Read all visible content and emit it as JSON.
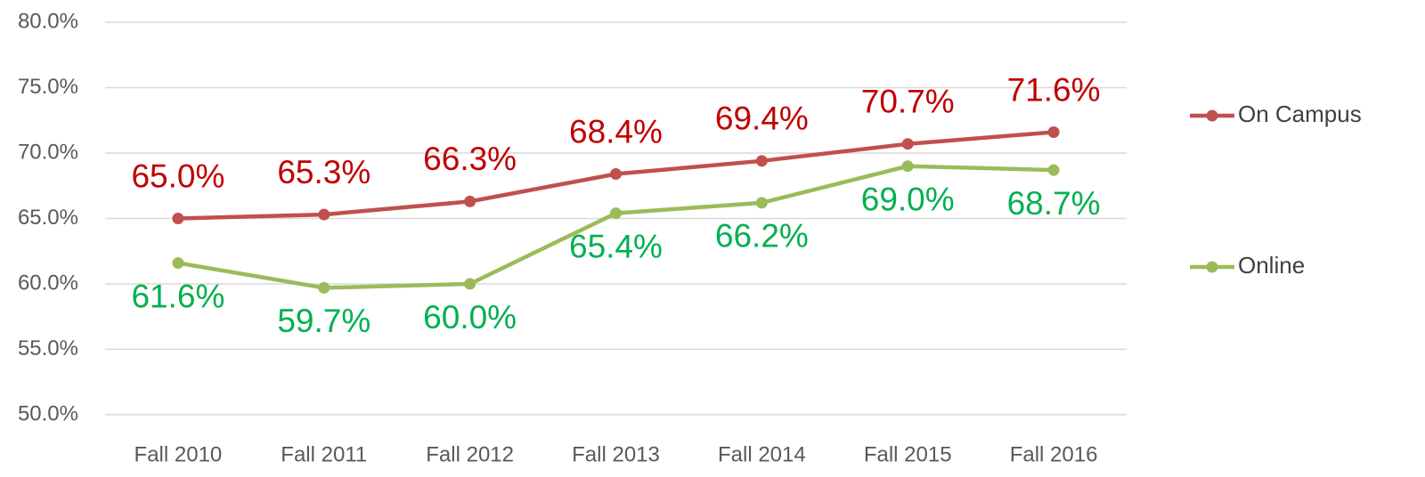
{
  "chart_data": {
    "type": "line",
    "categories": [
      "Fall 2010",
      "Fall 2011",
      "Fall 2012",
      "Fall 2013",
      "Fall 2014",
      "Fall 2015",
      "Fall 2016"
    ],
    "series": [
      {
        "name": "On Campus",
        "color": "#c0504d",
        "label_color": "#c00000",
        "values": [
          65.0,
          65.3,
          66.3,
          68.4,
          69.4,
          70.7,
          71.6
        ],
        "value_labels": [
          "65.0%",
          "65.3%",
          "66.3%",
          "68.4%",
          "69.4%",
          "70.7%",
          "71.6%"
        ]
      },
      {
        "name": "Online",
        "color": "#9bbb59",
        "label_color": "#00b050",
        "values": [
          61.6,
          59.7,
          60.0,
          65.4,
          66.2,
          69.0,
          68.7
        ],
        "value_labels": [
          "61.6%",
          "59.7%",
          "60.0%",
          "65.4%",
          "66.2%",
          "69.0%",
          "68.7%"
        ]
      }
    ],
    "ylim": [
      50,
      80
    ],
    "yticks": [
      {
        "value": 50,
        "label": "50.0%"
      },
      {
        "value": 55,
        "label": "55.0%"
      },
      {
        "value": 60,
        "label": "60.0%"
      },
      {
        "value": 65,
        "label": "65.0%"
      },
      {
        "value": 70,
        "label": "70.0%"
      },
      {
        "value": 75,
        "label": "75.0%"
      },
      {
        "value": 80,
        "label": "80.0%"
      }
    ],
    "grid": true,
    "legend": "right"
  }
}
